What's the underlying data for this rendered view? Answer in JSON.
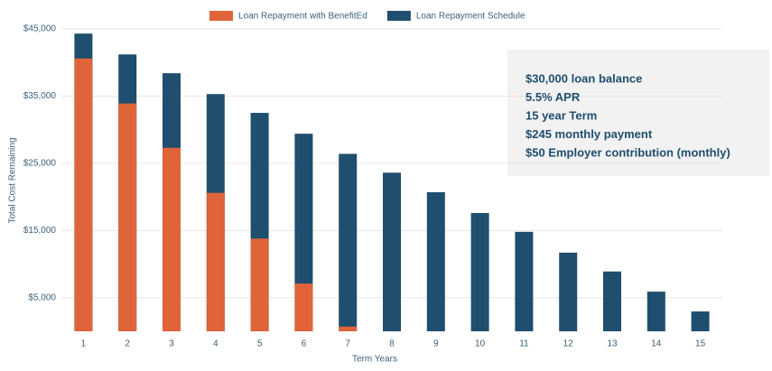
{
  "chart_data": {
    "type": "overlap-bar",
    "x_label": "Term Years",
    "y_label": "Total Cost Remaining",
    "categories": [
      "1",
      "2",
      "3",
      "4",
      "5",
      "6",
      "7",
      "8",
      "9",
      "10",
      "11",
      "12",
      "13",
      "14",
      "15"
    ],
    "series": [
      {
        "name": "Loan Repayment with BenefitEd",
        "color": "#e0643a",
        "values": [
          40600,
          33900,
          27300,
          20600,
          13800,
          7100,
          700,
          null,
          null,
          null,
          null,
          null,
          null,
          null,
          null
        ]
      },
      {
        "name": "Loan Repayment Schedule",
        "color": "#1f4e6e",
        "values": [
          44300,
          41200,
          38400,
          35300,
          32500,
          29400,
          26400,
          23600,
          20700,
          17600,
          14800,
          11700,
          8900,
          5900,
          2950
        ]
      }
    ],
    "ylim": [
      0,
      45000
    ],
    "yticks": [
      {
        "value": 5000,
        "label": "$5,000"
      },
      {
        "value": 15000,
        "label": "$15,000"
      },
      {
        "value": 25000,
        "label": "$25,000"
      },
      {
        "value": 35000,
        "label": "$35,000"
      },
      {
        "value": 45000,
        "label": "$45,000"
      }
    ],
    "grid": true,
    "annotations": [
      "$30,000 loan balance",
      "5.5% APR",
      "15 year Term",
      "$245 monthly payment",
      "$50 Employer contribution (monthly)"
    ]
  }
}
